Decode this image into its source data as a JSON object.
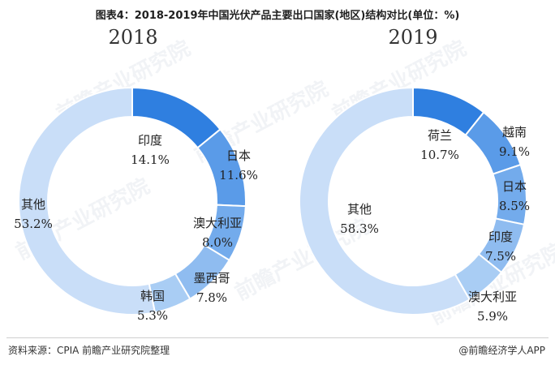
{
  "title": "图表4：2018-2019年中国光伏产品主要出口国家(地区)结构对比(单位：%)",
  "source": "资料来源：CPIA 前瞻产业研究院整理",
  "credit": "@前瞻经济学人APP",
  "watermark": "前瞻产业研究院",
  "chart_data": [
    {
      "type": "pie",
      "title": "2018",
      "categories": [
        "印度",
        "日本",
        "澳大利亚",
        "墨西哥",
        "韩国",
        "其他"
      ],
      "values": [
        14.1,
        11.6,
        8.0,
        7.8,
        5.3,
        53.2
      ],
      "labels": [
        "14.1%",
        "11.6%",
        "8.0%",
        "7.8%",
        "5.3%",
        "53.2%"
      ],
      "colors": [
        "#2f7fe0",
        "#5a9be8",
        "#73abec",
        "#8fbcf0",
        "#a9cdf4",
        "#c9def8"
      ]
    },
    {
      "type": "pie",
      "title": "2019",
      "categories": [
        "荷兰",
        "越南",
        "日本",
        "印度",
        "澳大利亚",
        "其他"
      ],
      "values": [
        10.7,
        9.1,
        8.5,
        7.5,
        5.9,
        58.3
      ],
      "labels": [
        "10.7%",
        "9.1%",
        "8.5%",
        "7.5%",
        "5.9%",
        "58.3%"
      ],
      "colors": [
        "#2f7fe0",
        "#5a9be8",
        "#73abec",
        "#8fbcf0",
        "#a9cdf4",
        "#c9def8"
      ]
    }
  ]
}
